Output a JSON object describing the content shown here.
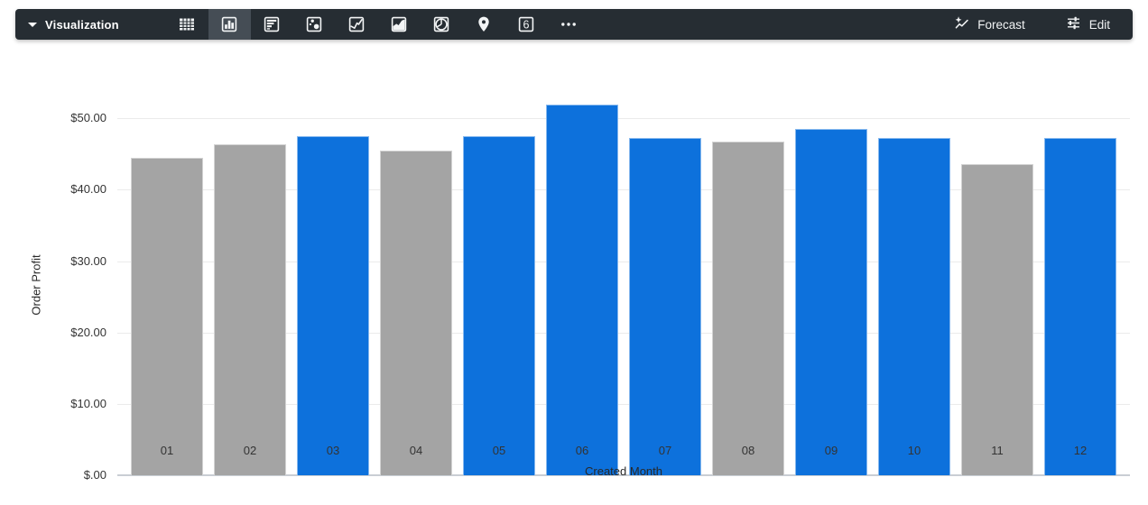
{
  "toolbar": {
    "title": "Visualization",
    "viz_buttons": [
      {
        "name": "table",
        "selected": false
      },
      {
        "name": "column-chart",
        "selected": true
      },
      {
        "name": "bar-chart",
        "selected": false
      },
      {
        "name": "scatter-plot",
        "selected": false
      },
      {
        "name": "line-chart",
        "selected": false
      },
      {
        "name": "area-chart",
        "selected": false
      },
      {
        "name": "pie-chart",
        "selected": false
      },
      {
        "name": "map",
        "selected": false
      },
      {
        "name": "single-value",
        "selected": false,
        "glyph": "6"
      },
      {
        "name": "more-options",
        "selected": false
      }
    ],
    "forecast_label": "Forecast",
    "edit_label": "Edit"
  },
  "chart_data": {
    "type": "bar",
    "xlabel": "Created Month",
    "ylabel": "Order Profit",
    "categories": [
      "01",
      "02",
      "03",
      "04",
      "05",
      "06",
      "07",
      "08",
      "09",
      "10",
      "11",
      "12"
    ],
    "values": [
      44.5,
      46.4,
      47.5,
      45.5,
      47.5,
      52.0,
      47.2,
      46.7,
      48.5,
      47.2,
      43.6,
      47.2
    ],
    "bar_colors": [
      "#a4a4a4",
      "#a4a4a4",
      "#0d71dc",
      "#a4a4a4",
      "#0d71dc",
      "#0d71dc",
      "#0d71dc",
      "#a4a4a4",
      "#0d71dc",
      "#0d71dc",
      "#a4a4a4",
      "#0d71dc"
    ],
    "palette": {
      "blue": "#0d71dc",
      "gray": "#a4a4a4"
    },
    "y_ticks": [
      {
        "value": 50,
        "label": "$50.00"
      },
      {
        "value": 40,
        "label": "$40.00"
      },
      {
        "value": 30,
        "label": "$30.00"
      },
      {
        "value": 20,
        "label": "$20.00"
      },
      {
        "value": 10,
        "label": "$10.00"
      },
      {
        "value": 0,
        "label": "$.00"
      }
    ],
    "ylim": [
      0,
      53.2
    ],
    "grid": true,
    "legend": "none"
  }
}
